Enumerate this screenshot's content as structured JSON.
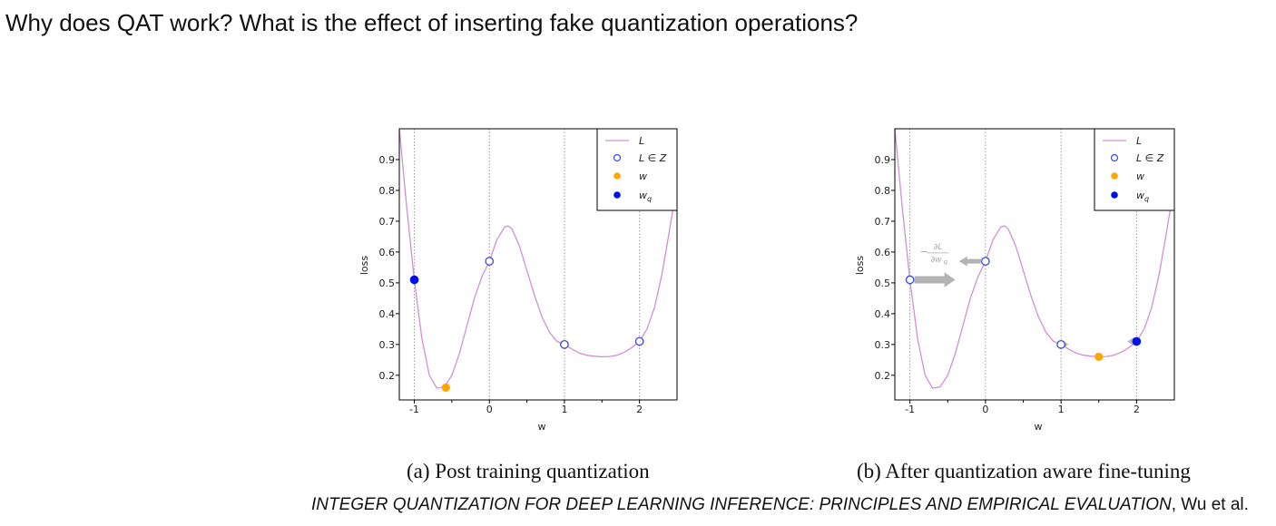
{
  "slide": {
    "title": "Why does QAT work? What is the effect of inserting fake quantization operations?",
    "citation_italic": "INTEGER QUANTIZATION FOR DEEP LEARNING INFERENCE: PRINCIPLES AND EMPIRICAL EVALUATION",
    "citation_rest": ", Wu et al."
  },
  "colors": {
    "curve": "#d28fd6",
    "lattice": "#3b48e0",
    "w": "#ffa500",
    "wq": "#0010e8",
    "arrow": "#b3b3b3"
  },
  "chart_data": [
    {
      "type": "line",
      "caption": "(a) Post training quantization",
      "xlabel": "w",
      "ylabel": "loss",
      "xlim": [
        -1.2,
        2.5
      ],
      "ylim": [
        0.12,
        1.0
      ],
      "xticks": [
        -1,
        0,
        1,
        2
      ],
      "xtick_labels": [
        "-1",
        "0",
        "1",
        "2"
      ],
      "yticks": [
        0.2,
        0.3,
        0.4,
        0.5,
        0.6,
        0.7,
        0.8,
        0.9
      ],
      "ytick_labels": [
        "0.2",
        "0.3",
        "0.4",
        "0.5",
        "0.6",
        "0.7",
        "0.8",
        "0.9"
      ],
      "grid_x": [
        -1,
        0,
        1,
        2
      ],
      "legend_position": "top-right",
      "legend": [
        "L",
        "L ∈ Z",
        "w",
        "wq"
      ],
      "series": [
        {
          "name": "L",
          "kind": "curve",
          "x": [
            -1.2,
            -1.1,
            -1.0,
            -0.9,
            -0.8,
            -0.7,
            -0.6,
            -0.5,
            -0.4,
            -0.3,
            -0.2,
            -0.1,
            0.0,
            0.1,
            0.2,
            0.25,
            0.3,
            0.4,
            0.5,
            0.6,
            0.7,
            0.8,
            0.9,
            1.0,
            1.1,
            1.2,
            1.3,
            1.4,
            1.5,
            1.6,
            1.7,
            1.8,
            1.9,
            2.0,
            2.1,
            2.2,
            2.3,
            2.4,
            2.5
          ],
          "y": [
            1.0,
            0.74,
            0.51,
            0.32,
            0.2,
            0.158,
            0.162,
            0.2,
            0.27,
            0.36,
            0.45,
            0.52,
            0.57,
            0.64,
            0.68,
            0.685,
            0.675,
            0.62,
            0.54,
            0.46,
            0.39,
            0.34,
            0.31,
            0.3,
            0.285,
            0.272,
            0.265,
            0.262,
            0.26,
            0.261,
            0.265,
            0.275,
            0.29,
            0.31,
            0.35,
            0.42,
            0.53,
            0.67,
            0.82
          ]
        },
        {
          "name": "L ∈ Z",
          "kind": "open-markers",
          "x": [
            -1,
            0,
            1,
            2
          ],
          "y": [
            0.51,
            0.57,
            0.3,
            0.31
          ]
        },
        {
          "name": "w",
          "kind": "filled-markers",
          "x": [
            -0.58
          ],
          "y": [
            0.16
          ]
        },
        {
          "name": "wq",
          "kind": "filled-markers",
          "x": [
            -1
          ],
          "y": [
            0.51
          ]
        }
      ],
      "annotations": []
    },
    {
      "type": "line",
      "caption": "(b) After quantization aware fine-tuning",
      "xlabel": "w",
      "ylabel": "loss",
      "xlim": [
        -1.2,
        2.5
      ],
      "ylim": [
        0.12,
        1.0
      ],
      "xticks": [
        -1,
        0,
        1,
        2
      ],
      "xtick_labels": [
        "-1",
        "0",
        "1",
        "2"
      ],
      "yticks": [
        0.2,
        0.3,
        0.4,
        0.5,
        0.6,
        0.7,
        0.8,
        0.9
      ],
      "ytick_labels": [
        "0.2",
        "0.3",
        "0.4",
        "0.5",
        "0.6",
        "0.7",
        "0.8",
        "0.9"
      ],
      "grid_x": [
        -1,
        0,
        1,
        2
      ],
      "legend_position": "top-right",
      "legend": [
        "L",
        "L ∈ Z",
        "w",
        "wq"
      ],
      "series": [
        {
          "name": "L",
          "kind": "curve",
          "x": [
            -1.2,
            -1.1,
            -1.0,
            -0.9,
            -0.8,
            -0.7,
            -0.6,
            -0.5,
            -0.4,
            -0.3,
            -0.2,
            -0.1,
            0.0,
            0.1,
            0.2,
            0.25,
            0.3,
            0.4,
            0.5,
            0.6,
            0.7,
            0.8,
            0.9,
            1.0,
            1.1,
            1.2,
            1.3,
            1.4,
            1.5,
            1.6,
            1.7,
            1.8,
            1.9,
            2.0,
            2.1,
            2.2,
            2.3,
            2.4,
            2.5
          ],
          "y": [
            1.0,
            0.74,
            0.51,
            0.32,
            0.2,
            0.158,
            0.162,
            0.2,
            0.27,
            0.36,
            0.45,
            0.52,
            0.57,
            0.64,
            0.68,
            0.685,
            0.675,
            0.62,
            0.54,
            0.46,
            0.39,
            0.34,
            0.31,
            0.3,
            0.285,
            0.272,
            0.265,
            0.262,
            0.26,
            0.261,
            0.265,
            0.275,
            0.29,
            0.31,
            0.35,
            0.42,
            0.53,
            0.67,
            0.82
          ]
        },
        {
          "name": "L ∈ Z",
          "kind": "open-markers",
          "x": [
            -1,
            0,
            1,
            2
          ],
          "y": [
            0.51,
            0.57,
            0.3,
            0.31
          ]
        },
        {
          "name": "w",
          "kind": "filled-markers",
          "x": [
            1.5
          ],
          "y": [
            0.26
          ]
        },
        {
          "name": "wq",
          "kind": "filled-markers",
          "x": [
            2
          ],
          "y": [
            0.31
          ]
        }
      ],
      "gradient_label_num": "∂L",
      "gradient_label_den": "∂w",
      "gradient_label_sub": "q",
      "gradient_label_sign": "−",
      "annotations": [
        {
          "kind": "arrow",
          "x0": -1,
          "x1": -0.4,
          "y": 0.51,
          "size": "large"
        },
        {
          "kind": "arrow",
          "x0": 0,
          "x1": -0.35,
          "y": 0.57,
          "size": "medium"
        },
        {
          "kind": "arrow",
          "x0": 1,
          "x1": 1.1,
          "y": 0.3,
          "size": "small"
        },
        {
          "kind": "arrow",
          "x0": 2,
          "x1": 1.88,
          "y": 0.31,
          "size": "small"
        }
      ]
    }
  ]
}
